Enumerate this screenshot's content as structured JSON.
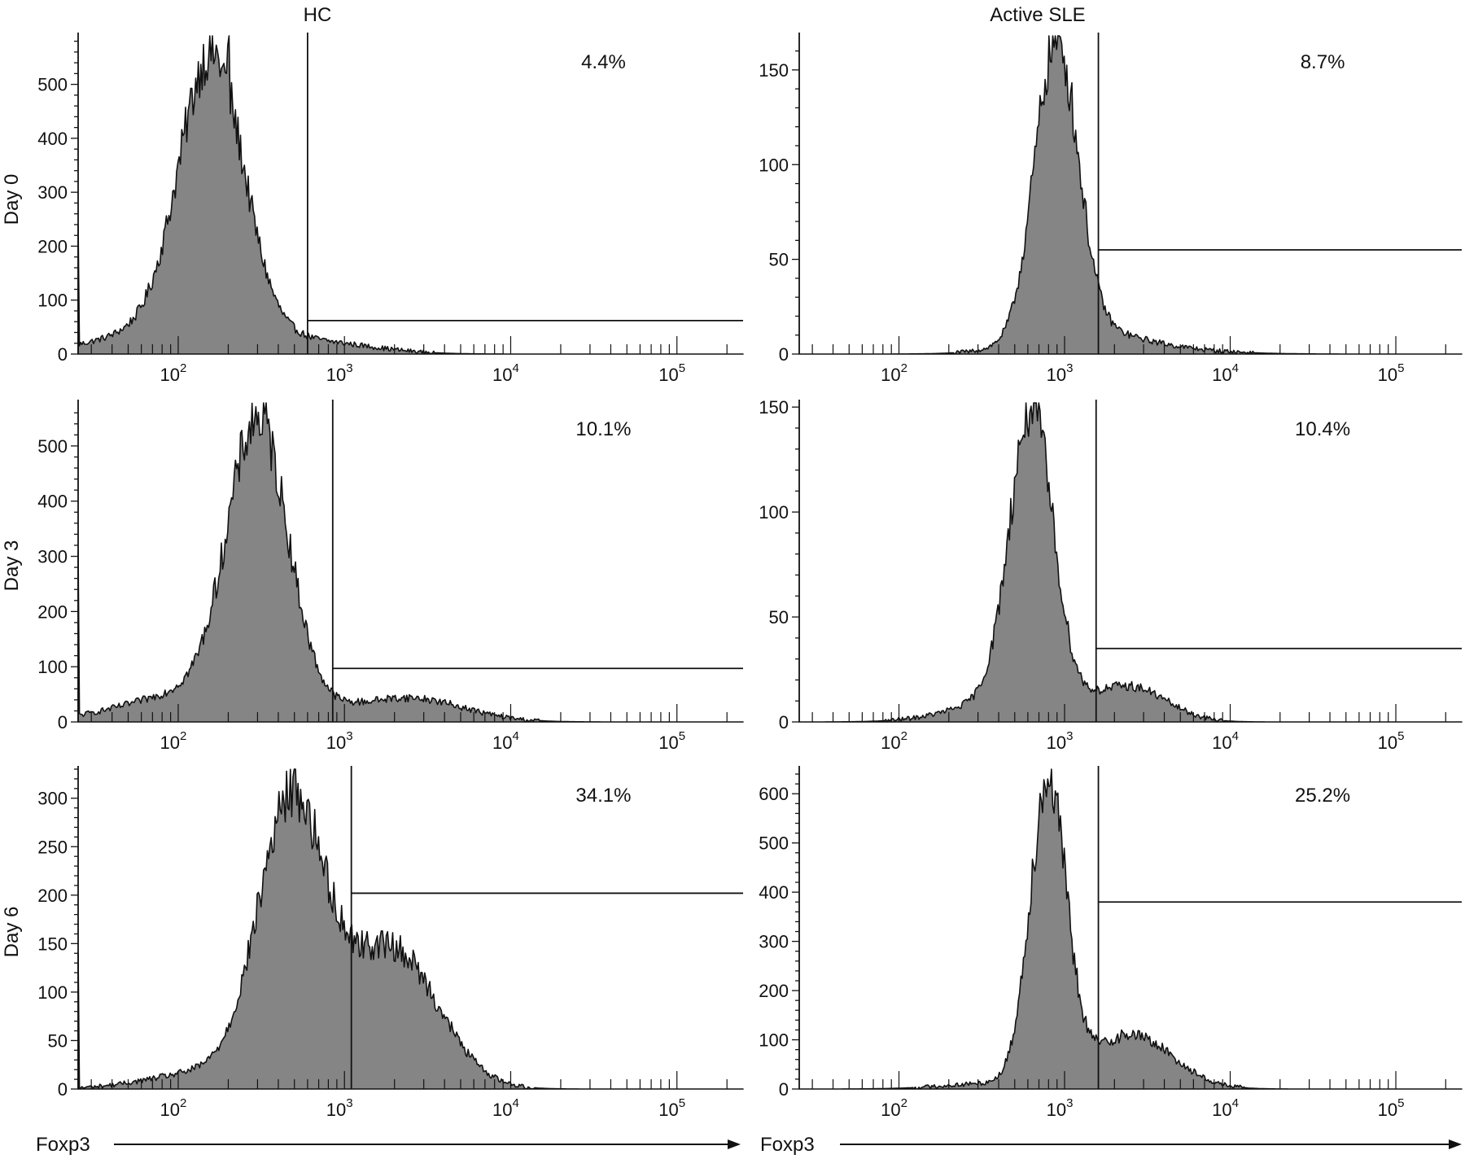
{
  "colors": {
    "fill": "#858585",
    "stroke": "#111111",
    "background": "#ffffff"
  },
  "chart_data": [
    {
      "type": "area",
      "panel": "hc-day0",
      "column_title": "HC",
      "row_label": "Day 0",
      "xlabel": "Foxp3",
      "x_scale": "log",
      "xlim": [
        25,
        250000
      ],
      "ylim": [
        0,
        590
      ],
      "y_ticks": [
        0,
        100,
        200,
        300,
        400,
        500
      ],
      "x_ticks": [
        {
          "base": "10",
          "exp": "2"
        },
        {
          "base": "10",
          "exp": "3"
        },
        {
          "base": "10",
          "exp": "4"
        },
        {
          "base": "10",
          "exp": "5"
        }
      ],
      "gate": {
        "start": 600,
        "end": 250000,
        "level": 62,
        "label": "4.4%"
      },
      "peaks": [
        {
          "mu": 2.2,
          "sigma": 0.19,
          "amp": 500
        },
        {
          "mu": 2.1,
          "sigma": 0.45,
          "amp": 60
        },
        {
          "mu": 2.98,
          "sigma": 0.3,
          "amp": 12
        }
      ],
      "spike": {
        "x": 200,
        "y": 585
      },
      "left_edge": 240
    },
    {
      "type": "area",
      "panel": "sle-day0",
      "column_title": "Active SLE",
      "row_label": "",
      "xlabel": "Foxp3",
      "x_scale": "log",
      "xlim": [
        25,
        250000
      ],
      "ylim": [
        0,
        168
      ],
      "y_ticks": [
        0,
        50,
        100,
        150
      ],
      "x_ticks": [
        {
          "base": "10",
          "exp": "2"
        },
        {
          "base": "10",
          "exp": "3"
        },
        {
          "base": "10",
          "exp": "4"
        },
        {
          "base": "10",
          "exp": "5"
        }
      ],
      "gate": {
        "start": 1600,
        "end": 250000,
        "level": 55,
        "label": "8.7%"
      },
      "peaks": [
        {
          "mu": 2.95,
          "sigma": 0.13,
          "amp": 155
        },
        {
          "mu": 3.1,
          "sigma": 0.32,
          "amp": 12
        },
        {
          "mu": 3.6,
          "sigma": 0.35,
          "amp": 2
        }
      ],
      "spike": {
        "x": 880,
        "y": 168
      },
      "left_edge": 0
    },
    {
      "type": "area",
      "panel": "hc-day3",
      "column_title": "",
      "row_label": "Day 3",
      "xlabel": "Foxp3",
      "x_scale": "log",
      "xlim": [
        25,
        250000
      ],
      "ylim": [
        0,
        578
      ],
      "y_ticks": [
        0,
        100,
        200,
        300,
        400,
        500
      ],
      "x_ticks": [
        {
          "base": "10",
          "exp": "2"
        },
        {
          "base": "10",
          "exp": "3"
        },
        {
          "base": "10",
          "exp": "4"
        },
        {
          "base": "10",
          "exp": "5"
        }
      ],
      "gate": {
        "start": 850,
        "end": 250000,
        "level": 97,
        "label": "10.1%"
      },
      "peaks": [
        {
          "mu": 2.48,
          "sigma": 0.18,
          "amp": 500
        },
        {
          "mu": 2.2,
          "sigma": 0.45,
          "amp": 60
        },
        {
          "mu": 3.4,
          "sigma": 0.32,
          "amp": 42
        }
      ],
      "spike": {
        "x": 340,
        "y": 575
      },
      "left_edge": 310
    },
    {
      "type": "area",
      "panel": "sle-day3",
      "column_title": "",
      "row_label": "",
      "xlabel": "Foxp3",
      "x_scale": "log",
      "xlim": [
        25,
        250000
      ],
      "ylim": [
        0,
        152
      ],
      "y_ticks": [
        0,
        50,
        100,
        150
      ],
      "x_ticks": [
        {
          "base": "10",
          "exp": "2"
        },
        {
          "base": "10",
          "exp": "3"
        },
        {
          "base": "10",
          "exp": "4"
        },
        {
          "base": "10",
          "exp": "5"
        }
      ],
      "gate": {
        "start": 1550,
        "end": 250000,
        "level": 35,
        "label": "10.4%"
      },
      "peaks": [
        {
          "mu": 2.8,
          "sigma": 0.13,
          "amp": 138
        },
        {
          "mu": 2.7,
          "sigma": 0.32,
          "amp": 12
        },
        {
          "mu": 3.4,
          "sigma": 0.22,
          "amp": 16
        }
      ],
      "spike": {
        "x": 620,
        "y": 150
      },
      "left_edge": 0
    },
    {
      "type": "area",
      "panel": "hc-day6",
      "column_title": "",
      "row_label": "Day 6",
      "xlabel": "Foxp3",
      "x_scale": "log",
      "xlim": [
        25,
        250000
      ],
      "ylim": [
        0,
        330
      ],
      "y_ticks": [
        0,
        50,
        100,
        150,
        200,
        250,
        300
      ],
      "x_ticks": [
        {
          "base": "10",
          "exp": "2"
        },
        {
          "base": "10",
          "exp": "3"
        },
        {
          "base": "10",
          "exp": "4"
        },
        {
          "base": "10",
          "exp": "5"
        }
      ],
      "gate": {
        "start": 1100,
        "end": 250000,
        "level": 202,
        "label": "34.1%"
      },
      "peaks": [
        {
          "mu": 2.68,
          "sigma": 0.2,
          "amp": 285
        },
        {
          "mu": 3.28,
          "sigma": 0.28,
          "amp": 145
        },
        {
          "mu": 2.2,
          "sigma": 0.35,
          "amp": 18
        }
      ],
      "spike": {
        "x": 500,
        "y": 328
      },
      "left_edge": 140
    },
    {
      "type": "area",
      "panel": "sle-day6",
      "column_title": "",
      "row_label": "",
      "xlabel": "Foxp3",
      "x_scale": "log",
      "xlim": [
        25,
        250000
      ],
      "ylim": [
        0,
        650
      ],
      "y_ticks": [
        0,
        100,
        200,
        300,
        400,
        500,
        600
      ],
      "x_ticks": [
        {
          "base": "10",
          "exp": "2"
        },
        {
          "base": "10",
          "exp": "3"
        },
        {
          "base": "10",
          "exp": "4"
        },
        {
          "base": "10",
          "exp": "5"
        }
      ],
      "gate": {
        "start": 1600,
        "end": 250000,
        "level": 380,
        "label": "25.2%"
      },
      "peaks": [
        {
          "mu": 2.9,
          "sigma": 0.11,
          "amp": 610
        },
        {
          "mu": 3.4,
          "sigma": 0.25,
          "amp": 110
        },
        {
          "mu": 2.6,
          "sigma": 0.3,
          "amp": 12
        }
      ],
      "spike": {
        "x": 830,
        "y": 648
      },
      "left_edge": 0
    }
  ]
}
